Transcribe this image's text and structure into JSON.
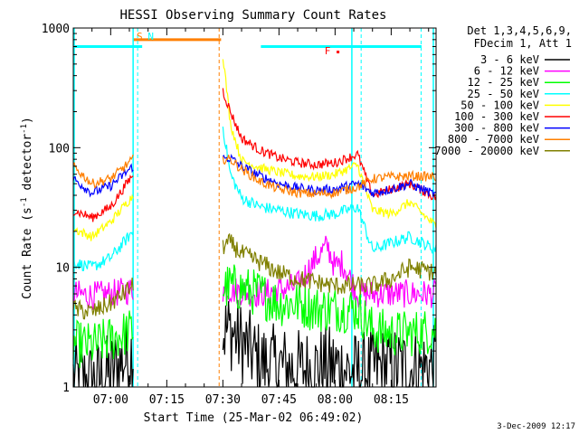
{
  "chart_data": {
    "type": "line",
    "title": "HESSI Observing Summary Count Rates",
    "xlabel": "Start Time (25-Mar-02 06:49:02)",
    "ylabel_main": "Count Rate (s",
    "ylabel_sup1": "-1",
    "ylabel_mid": " detector",
    "ylabel_sup2": "-1",
    "ylabel_end": ")",
    "y_scale": "log",
    "ylim": [
      1,
      1000
    ],
    "xlim_minutes": [
      -10,
      87
    ],
    "x_ticks": [
      {
        "minute": 0,
        "label": "07:00"
      },
      {
        "minute": 15,
        "label": "07:15"
      },
      {
        "minute": 30,
        "label": "07:30"
      },
      {
        "minute": 45,
        "label": "07:45"
      },
      {
        "minute": 60,
        "label": "08:00"
      },
      {
        "minute": 75,
        "label": "08:15"
      }
    ],
    "y_ticks": [
      {
        "value": 1,
        "label": "1"
      },
      {
        "value": 10,
        "label": "10"
      },
      {
        "value": 100,
        "label": "100"
      },
      {
        "value": 1000,
        "label": "1000"
      }
    ],
    "legend_header": [
      "Det 1,3,4,5,6,9,",
      "FDecim 1, Att 1"
    ],
    "legend_position": "right",
    "timestamp": "3-Dec-2009 12:17",
    "flag_markers": [
      {
        "label": "S",
        "minute": 7,
        "color": "#ff7f00"
      },
      {
        "label": "N",
        "minute": 10,
        "color": "#00ffff"
      },
      {
        "label": "F",
        "minute": 58,
        "color": "#ff0000"
      }
    ],
    "segments": [
      [
        -10,
        6
      ],
      [
        30,
        88
      ]
    ],
    "series": [
      {
        "name": "3 - 6 keV",
        "color": "#000000",
        "x": [
          -10,
          -5,
          0,
          6,
          32,
          40,
          50,
          60,
          66,
          70,
          75,
          80,
          87
        ],
        "values": [
          1.2,
          1.1,
          1.3,
          2.0,
          3.0,
          1.6,
          1.4,
          1.5,
          1.3,
          1.4,
          1.5,
          1.4,
          1.5
        ]
      },
      {
        "name": "6 - 12 keV",
        "color": "#ff00ff",
        "x": [
          -10,
          -5,
          0,
          6,
          32,
          40,
          50,
          55,
          58,
          60,
          62,
          66,
          70,
          75,
          80,
          87
        ],
        "values": [
          6,
          5.8,
          6,
          6.5,
          6.5,
          6,
          7,
          12,
          15,
          10,
          11,
          6,
          6,
          6,
          6,
          6
        ]
      },
      {
        "name": "12 - 25 keV",
        "color": "#00ff00",
        "x": [
          -10,
          -5,
          0,
          6,
          32,
          40,
          45,
          50,
          55,
          60,
          66,
          70,
          75,
          80,
          87
        ],
        "values": [
          2.3,
          2.2,
          2.5,
          3.0,
          7,
          6,
          5,
          5,
          4.5,
          4.5,
          4.5,
          3,
          2.8,
          2.8,
          3
        ]
      },
      {
        "name": "25 - 50 keV",
        "color": "#00ffff",
        "x": [
          -10,
          -5,
          0,
          6,
          30,
          32,
          35,
          40,
          45,
          50,
          55,
          60,
          66,
          70,
          75,
          80,
          87
        ],
        "values": [
          11,
          10,
          12,
          20,
          150,
          60,
          38,
          32,
          30,
          28,
          27,
          28,
          32,
          14,
          16,
          18,
          14
        ]
      },
      {
        "name": "50 - 100 keV",
        "color": "#ffff00",
        "x": [
          -10,
          -5,
          0,
          6,
          30,
          32,
          35,
          40,
          45,
          50,
          55,
          60,
          66,
          70,
          75,
          80,
          87
        ],
        "values": [
          21,
          18,
          24,
          40,
          600,
          160,
          78,
          68,
          62,
          58,
          57,
          60,
          72,
          30,
          28,
          35,
          22
        ]
      },
      {
        "name": "100 - 300 keV",
        "color": "#ff0000",
        "x": [
          -10,
          -5,
          0,
          6,
          30,
          32,
          35,
          40,
          45,
          50,
          55,
          60,
          66,
          70,
          75,
          80,
          87
        ],
        "values": [
          30,
          26,
          32,
          60,
          300,
          200,
          120,
          95,
          82,
          75,
          72,
          75,
          88,
          40,
          45,
          50,
          38
        ]
      },
      {
        "name": "300 - 800 keV",
        "color": "#0000ff",
        "x": [
          -10,
          -5,
          0,
          6,
          32,
          35,
          40,
          45,
          50,
          55,
          60,
          66,
          70,
          75,
          80,
          87
        ],
        "values": [
          55,
          42,
          48,
          70,
          82,
          70,
          58,
          50,
          46,
          44,
          45,
          50,
          42,
          45,
          50,
          40
        ]
      },
      {
        "name": "800 - 7000 keV",
        "color": "#ff7f00",
        "x": [
          -10,
          -5,
          0,
          6,
          32,
          35,
          40,
          45,
          50,
          55,
          60,
          66,
          70,
          75,
          80,
          87
        ],
        "values": [
          70,
          50,
          55,
          80,
          80,
          66,
          52,
          45,
          42,
          41,
          42,
          47,
          55,
          57,
          58,
          57
        ]
      },
      {
        "name": "7000 - 20000 keV",
        "color": "#808000",
        "x": [
          -10,
          -5,
          0,
          6,
          32,
          35,
          40,
          45,
          50,
          55,
          60,
          66,
          70,
          75,
          80,
          87
        ],
        "values": [
          4.5,
          4.2,
          5,
          7,
          16,
          13,
          11,
          9,
          8,
          7.5,
          7,
          7,
          7,
          8,
          10,
          9
        ]
      }
    ]
  }
}
